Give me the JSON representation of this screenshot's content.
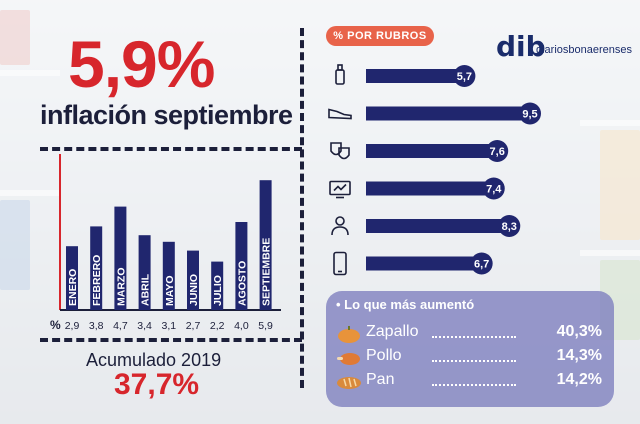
{
  "headline": "5,9%",
  "subheadline": "inflación septiembre",
  "monthly": {
    "axis_label": "%"
  },
  "accumulated": {
    "label": "Acumulado 2019",
    "value": "37,7%"
  },
  "rubros": {
    "label": "%  POR RUBROS",
    "icons": [
      "bottle-icon",
      "shoe-icon",
      "theater-masks-icon",
      "tv-icon",
      "doctor-icon",
      "smartphone-icon"
    ]
  },
  "logo": {
    "mark": "dib",
    "text": "diariosbonaerenses"
  },
  "panel": {
    "title": "• Lo que más aumentó",
    "items": [
      {
        "name": "Zapallo",
        "value": "40,3%",
        "icon": "pumpkin-icon"
      },
      {
        "name": "Pollo",
        "value": "14,3%",
        "icon": "chicken-icon"
      },
      {
        "name": "Pan",
        "value": "14,2%",
        "icon": "bread-icon"
      }
    ]
  },
  "colors": {
    "navy": "#1c1f3a",
    "bar_blue": "#20266e",
    "headline_red": "#d7262c",
    "accent_orange": "#e8634a",
    "panel_purple": "#7c7ebe"
  },
  "chart_data": [
    {
      "type": "bar",
      "categories": [
        "ENERO",
        "FEBRERO",
        "MARZO",
        "ABRIL",
        "MAYO",
        "JUNIO",
        "JULIO",
        "AGOSTO",
        "SEPTIEMBRE"
      ],
      "values": [
        2.9,
        3.8,
        4.7,
        3.4,
        3.1,
        2.7,
        2.2,
        4.0,
        5.9
      ],
      "value_labels": [
        "2,9",
        "3,8",
        "4,7",
        "3,4",
        "3,1",
        "2,7",
        "2,2",
        "4,0",
        "5,9"
      ],
      "ylabel": "%",
      "ylim": [
        0,
        6
      ]
    },
    {
      "type": "bar",
      "orientation": "horizontal",
      "title": "%  POR RUBROS",
      "categories": [
        "bottle-icon",
        "shoe-icon",
        "theater-masks-icon",
        "tv-icon",
        "doctor-icon",
        "smartphone-icon"
      ],
      "values": [
        5.7,
        9.5,
        7.6,
        7.4,
        8.3,
        6.7
      ],
      "value_labels": [
        "5,7",
        "9,5",
        "7,6",
        "7,4",
        "8,3",
        "6,7"
      ],
      "xlim": [
        0,
        9.5
      ]
    }
  ]
}
